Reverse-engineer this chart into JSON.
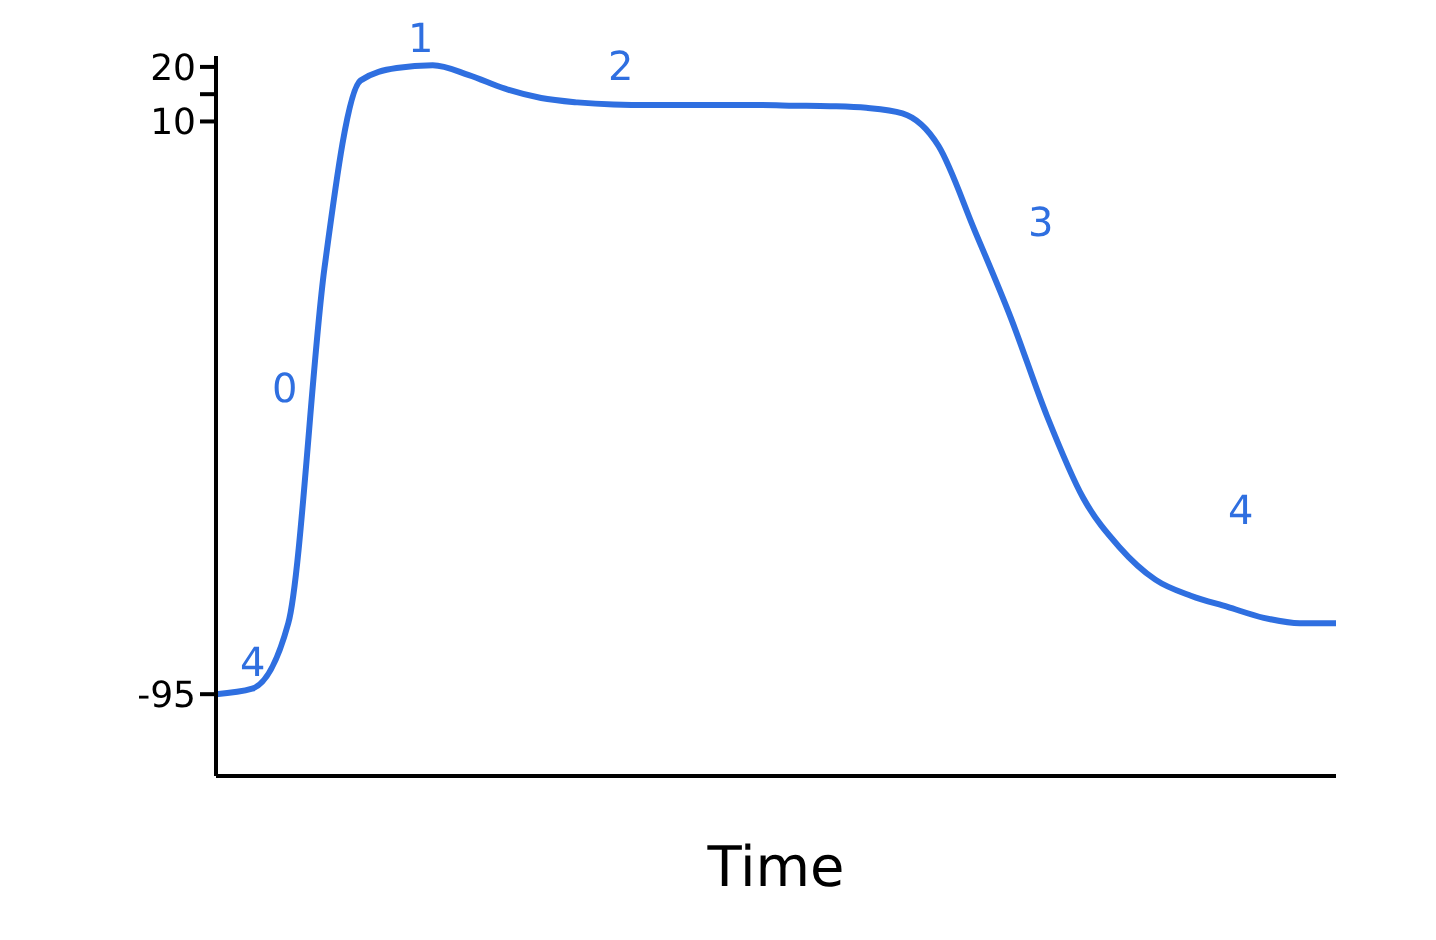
{
  "chart_data": {
    "type": "line",
    "xlabel": "Time",
    "categories": [
      null,
      null,
      null,
      null,
      null,
      null,
      null,
      null,
      null,
      null,
      null,
      null,
      null,
      null,
      null,
      null,
      null,
      null,
      null,
      null,
      null,
      null,
      null,
      null,
      null,
      null,
      null,
      null,
      null,
      null,
      null,
      null
    ],
    "series": [
      {
        "color": "#2f6fe0",
        "values": [
          -95,
          -94,
          -82,
          -17,
          17.5,
          19.8,
          20.3,
          18.5,
          16,
          14.3,
          13.5,
          13.1,
          13,
          13,
          13,
          13,
          12.9,
          12.8,
          12.5,
          11.5,
          5.5,
          -10,
          -26,
          -44,
          -59,
          -68,
          -74,
          -77,
          -79,
          -81,
          -82,
          -82
        ]
      }
    ],
    "ylim": [
      -110,
      22
    ],
    "yticks": [
      -95,
      10,
      {
        "value": 15,
        "label": null
      },
      20
    ],
    "grid": false,
    "legend": false,
    "marker": "none",
    "line_style": "solid",
    "annotations": [
      "4",
      "0",
      "1",
      "2",
      "3",
      "4"
    ]
  }
}
